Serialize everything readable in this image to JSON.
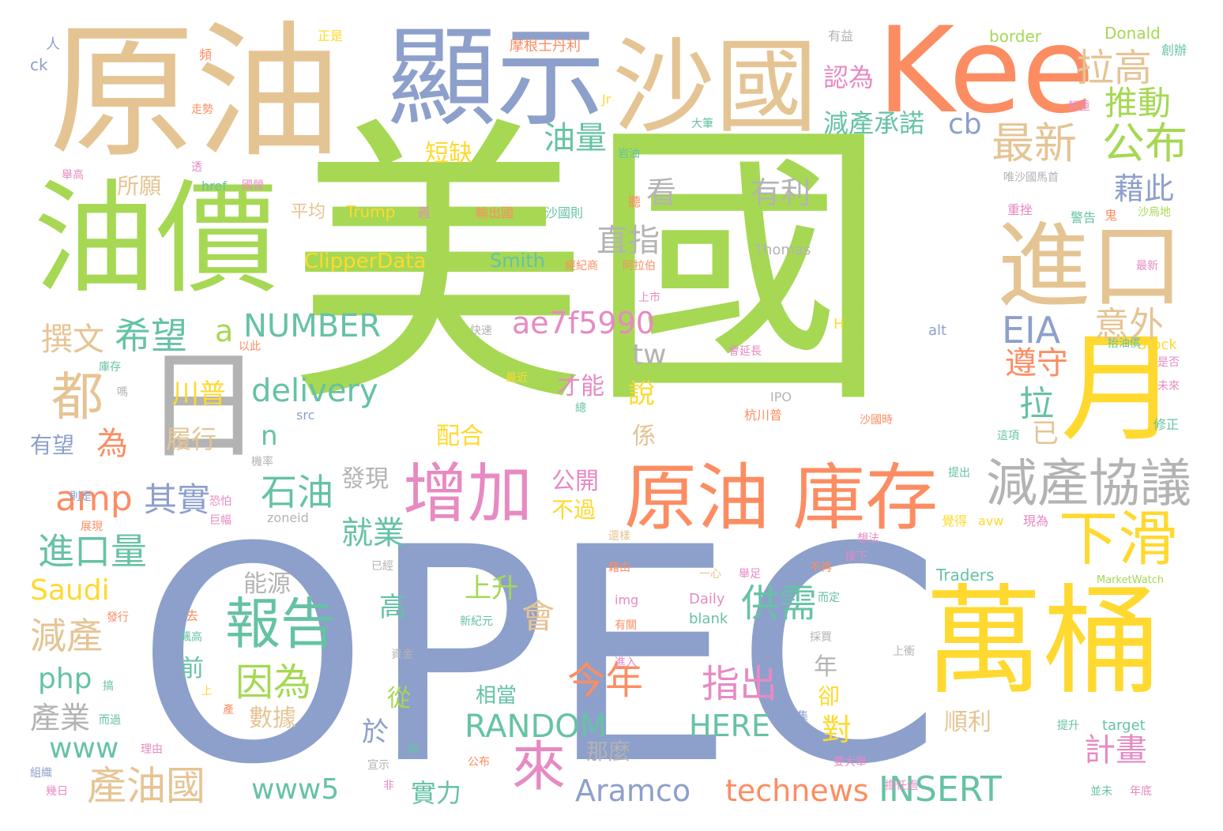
{
  "palette": {
    "green": "#a6d854",
    "blue": "#8da0cb",
    "tan": "#e5c494",
    "orange": "#fc8d62",
    "yellow": "#ffd92f",
    "pink": "#e78ac3",
    "teal": "#66c2a5",
    "gray": "#b3b3b3"
  },
  "words": [
    {
      "text": "美國",
      "color": "green"
    },
    {
      "text": "OPEC",
      "color": "blue"
    },
    {
      "text": "原油",
      "color": "tan"
    },
    {
      "text": "顯示",
      "color": "blue"
    },
    {
      "text": "沙國",
      "color": "tan"
    },
    {
      "text": "Kee",
      "color": "orange"
    },
    {
      "text": "油價",
      "color": "green"
    },
    {
      "text": "進口",
      "color": "tan"
    },
    {
      "text": "萬桶",
      "color": "yellow"
    },
    {
      "text": "月",
      "color": "yellow"
    },
    {
      "text": "日",
      "color": "gray"
    },
    {
      "text": "原油 庫存",
      "color": "orange"
    },
    {
      "text": "增加",
      "color": "pink"
    },
    {
      "text": "減產協議",
      "color": "gray"
    },
    {
      "text": "下滑",
      "color": "yellow"
    },
    {
      "text": "報告",
      "color": "teal"
    },
    {
      "text": "最新",
      "color": "tan"
    },
    {
      "text": "公布",
      "color": "green"
    },
    {
      "text": "拉高",
      "color": "tan"
    },
    {
      "text": "推動",
      "color": "green"
    },
    {
      "text": "都",
      "color": "tan"
    },
    {
      "text": "來",
      "color": "pink"
    },
    {
      "text": "因為",
      "color": "green"
    },
    {
      "text": "今年",
      "color": "orange"
    },
    {
      "text": "指出",
      "color": "pink"
    },
    {
      "text": "供需",
      "color": "teal"
    },
    {
      "text": "石油",
      "color": "teal"
    },
    {
      "text": "希望",
      "color": "teal"
    },
    {
      "text": "撰文",
      "color": "tan"
    },
    {
      "text": "進口量",
      "color": "teal"
    },
    {
      "text": "減產",
      "color": "tan"
    },
    {
      "text": "產業",
      "color": "gray"
    },
    {
      "text": "產油國",
      "color": "tan"
    },
    {
      "text": "amp",
      "color": "orange"
    },
    {
      "text": "其實",
      "color": "blue"
    },
    {
      "text": "delivery",
      "color": "teal"
    },
    {
      "text": "NUMBER",
      "color": "teal"
    },
    {
      "text": "ae7f5990",
      "color": "pink"
    },
    {
      "text": "RANDOM",
      "color": "teal"
    },
    {
      "text": "HERE",
      "color": "teal"
    },
    {
      "text": "INSERT",
      "color": "teal"
    },
    {
      "text": "technews",
      "color": "orange"
    },
    {
      "text": "Aramco",
      "color": "blue"
    },
    {
      "text": "www5",
      "color": "teal"
    },
    {
      "text": "www",
      "color": "teal"
    },
    {
      "text": "php",
      "color": "teal"
    },
    {
      "text": "Saudi",
      "color": "yellow"
    },
    {
      "text": "EIA",
      "color": "blue"
    },
    {
      "text": "意外",
      "color": "tan"
    },
    {
      "text": "遵守",
      "color": "orange"
    },
    {
      "text": "拉",
      "color": "teal"
    },
    {
      "text": "已",
      "color": "tan"
    },
    {
      "text": "藉此",
      "color": "blue"
    },
    {
      "text": "有利",
      "color": "gray"
    },
    {
      "text": "直指",
      "color": "gray"
    },
    {
      "text": "看",
      "color": "gray"
    },
    {
      "text": "油量",
      "color": "teal"
    },
    {
      "text": "減產承諾",
      "color": "teal"
    },
    {
      "text": "認為",
      "color": "pink"
    },
    {
      "text": "cb",
      "color": "blue"
    },
    {
      "text": "cb",
      "color": "blue"
    },
    {
      "text": "短缺",
      "color": "yellow"
    },
    {
      "text": "所願",
      "color": "tan"
    },
    {
      "text": "平均",
      "color": "tan"
    },
    {
      "text": "Trump",
      "color": "yellow"
    },
    {
      "text": "ClipperData",
      "color": "yellow"
    },
    {
      "text": "Smith",
      "color": "teal"
    },
    {
      "text": "川普",
      "color": "yellow"
    },
    {
      "text": "履行",
      "color": "tan"
    },
    {
      "text": "為",
      "color": "orange"
    },
    {
      "text": "有望",
      "color": "blue"
    },
    {
      "text": "a",
      "color": "green"
    },
    {
      "text": "tw",
      "color": "gray"
    },
    {
      "text": "說",
      "color": "yellow"
    },
    {
      "text": "係",
      "color": "tan"
    },
    {
      "text": "n",
      "color": "teal"
    },
    {
      "text": "才能",
      "color": "pink"
    },
    {
      "text": "配合",
      "color": "yellow"
    },
    {
      "text": "公開",
      "color": "pink"
    },
    {
      "text": "不過",
      "color": "yellow"
    },
    {
      "text": "發現",
      "color": "gray"
    },
    {
      "text": "就業",
      "color": "teal"
    },
    {
      "text": "能源",
      "color": "gray"
    },
    {
      "text": "上升",
      "color": "green"
    },
    {
      "text": "高",
      "color": "teal"
    },
    {
      "text": "會",
      "color": "tan"
    },
    {
      "text": "前",
      "color": "teal"
    },
    {
      "text": "相當",
      "color": "teal"
    },
    {
      "text": "從",
      "color": "green"
    },
    {
      "text": "數據",
      "color": "tan"
    },
    {
      "text": "於",
      "color": "blue"
    },
    {
      "text": "實力",
      "color": "teal"
    },
    {
      "text": "那麼",
      "color": "gray"
    },
    {
      "text": "年",
      "color": "gray"
    },
    {
      "text": "卻",
      "color": "yellow"
    },
    {
      "text": "對",
      "color": "yellow"
    },
    {
      "text": "順利",
      "color": "tan"
    },
    {
      "text": "計畫",
      "color": "pink"
    },
    {
      "text": "正是",
      "color": "yellow"
    },
    {
      "text": "頻",
      "color": "orange"
    },
    {
      "text": "人",
      "color": "blue"
    },
    {
      "text": "ck",
      "color": "blue"
    },
    {
      "text": "摩根士丹利",
      "color": "orange"
    },
    {
      "text": "有益",
      "color": "gray"
    },
    {
      "text": "border",
      "color": "green"
    },
    {
      "text": "Donald",
      "color": "green"
    },
    {
      "text": "創辦",
      "color": "teal"
    },
    {
      "text": "走勢",
      "color": "orange"
    },
    {
      "text": "Jr",
      "color": "yellow"
    },
    {
      "text": "輕重",
      "color": "pink"
    },
    {
      "text": "大筆",
      "color": "teal"
    },
    {
      "text": "岩油",
      "color": "teal"
    },
    {
      "text": "唯沙國馬首",
      "color": "gray"
    },
    {
      "text": "舉高",
      "color": "pink"
    },
    {
      "text": "透",
      "color": "pink"
    },
    {
      "text": "href",
      "color": "teal"
    },
    {
      "text": "國營",
      "color": "pink"
    },
    {
      "text": "週",
      "color": "pink"
    },
    {
      "text": "輸出國",
      "color": "orange"
    },
    {
      "text": "沙國則",
      "color": "teal"
    },
    {
      "text": "聽",
      "color": "orange"
    },
    {
      "text": "重挫",
      "color": "pink"
    },
    {
      "text": "警告",
      "color": "teal"
    },
    {
      "text": "鬼",
      "color": "orange"
    },
    {
      "text": "沙烏地",
      "color": "green"
    },
    {
      "text": "Thomas",
      "color": "gray"
    },
    {
      "text": "經紀商",
      "color": "orange"
    },
    {
      "text": "阿拉伯",
      "color": "orange"
    },
    {
      "text": "最新",
      "color": "pink"
    },
    {
      "text": "上市",
      "color": "pink"
    },
    {
      "text": "H",
      "color": "yellow"
    },
    {
      "text": "alt",
      "color": "blue"
    },
    {
      "text": "抬油價",
      "color": "teal"
    },
    {
      "text": "Stock",
      "color": "yellow"
    },
    {
      "text": "是否",
      "color": "pink"
    },
    {
      "text": "未來",
      "color": "pink"
    },
    {
      "text": "修正",
      "color": "teal"
    },
    {
      "text": "以此",
      "color": "orange"
    },
    {
      "text": "快速",
      "color": "gray"
    },
    {
      "text": "會延長",
      "color": "pink"
    },
    {
      "text": "庫存",
      "color": "teal"
    },
    {
      "text": "嗎",
      "color": "gray"
    },
    {
      "text": "最近",
      "color": "yellow"
    },
    {
      "text": "總",
      "color": "teal"
    },
    {
      "text": "IPO",
      "color": "gray"
    },
    {
      "text": "src",
      "color": "blue"
    },
    {
      "text": "杭川普",
      "color": "orange"
    },
    {
      "text": "沙國時",
      "color": "orange"
    },
    {
      "text": "這項",
      "color": "teal"
    },
    {
      "text": "機率",
      "color": "gray"
    },
    {
      "text": "則是",
      "color": "blue"
    },
    {
      "text": "恐怕",
      "color": "pink"
    },
    {
      "text": "巨幅",
      "color": "pink"
    },
    {
      "text": "展現",
      "color": "orange"
    },
    {
      "text": "zoneid",
      "color": "gray"
    },
    {
      "text": "提出",
      "color": "teal"
    },
    {
      "text": "覺得",
      "color": "yellow"
    },
    {
      "text": "avw",
      "color": "yellow"
    },
    {
      "text": "現為",
      "color": "pink"
    },
    {
      "text": "還樣",
      "color": "tan"
    },
    {
      "text": "想法",
      "color": "pink"
    },
    {
      "text": "接下",
      "color": "pink"
    },
    {
      "text": "已經",
      "color": "gray"
    },
    {
      "text": "一心",
      "color": "tan"
    },
    {
      "text": "舉足",
      "color": "pink"
    },
    {
      "text": "不再",
      "color": "orange"
    },
    {
      "text": "藉由",
      "color": "orange"
    },
    {
      "text": "Traders",
      "color": "teal"
    },
    {
      "text": "MarketWatch",
      "color": "green"
    },
    {
      "text": "img",
      "color": "pink"
    },
    {
      "text": "Daily",
      "color": "pink"
    },
    {
      "text": "而定",
      "color": "teal"
    },
    {
      "text": "去",
      "color": "orange"
    },
    {
      "text": "發行",
      "color": "orange"
    },
    {
      "text": "飆高",
      "color": "teal"
    },
    {
      "text": "新紀元",
      "color": "teal"
    },
    {
      "text": "有關",
      "color": "orange"
    },
    {
      "text": "blank",
      "color": "teal"
    },
    {
      "text": "採買",
      "color": "gray"
    },
    {
      "text": "上衝",
      "color": "gray"
    },
    {
      "text": "資金",
      "color": "gray"
    },
    {
      "text": "搞",
      "color": "teal"
    },
    {
      "text": "上",
      "color": "yellow"
    },
    {
      "text": "進入",
      "color": "pink"
    },
    {
      "text": "產",
      "color": "orange"
    },
    {
      "text": "專集",
      "color": "blue"
    },
    {
      "text": "而過",
      "color": "teal"
    },
    {
      "text": "理由",
      "color": "pink"
    },
    {
      "text": "開",
      "color": "teal"
    },
    {
      "text": "宣示",
      "color": "gray"
    },
    {
      "text": "公布",
      "color": "orange"
    },
    {
      "text": "要大舉",
      "color": "pink"
    },
    {
      "text": "提升",
      "color": "teal"
    },
    {
      "text": "target",
      "color": "teal"
    },
    {
      "text": "組織",
      "color": "blue"
    },
    {
      "text": "非",
      "color": "pink"
    },
    {
      "text": "幾日",
      "color": "pink"
    },
    {
      "text": "擔任過",
      "color": "pink"
    },
    {
      "text": "並未",
      "color": "teal"
    },
    {
      "text": "年底",
      "color": "pink"
    }
  ]
}
